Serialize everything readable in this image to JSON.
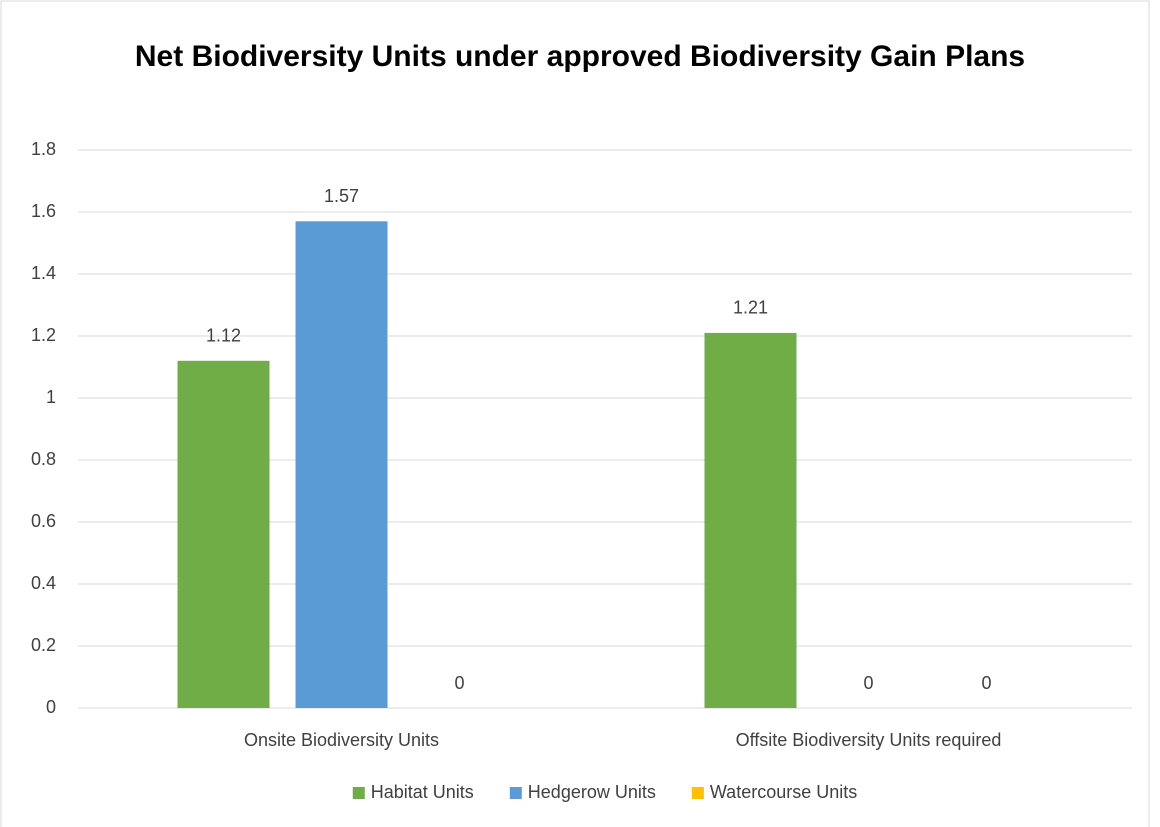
{
  "chart_data": {
    "type": "bar",
    "title": "Net Biodiversity Units under approved Biodiversity Gain Plans",
    "categories": [
      "Onsite Biodiversity Units",
      "Offsite Biodiversity Units required"
    ],
    "series": [
      {
        "name": "Habitat Units",
        "color": "#70ad47",
        "values": [
          1.12,
          1.21
        ]
      },
      {
        "name": "Hedgerow Units",
        "color": "#5b9bd5",
        "values": [
          1.57,
          0
        ]
      },
      {
        "name": "Watercourse Units",
        "color": "#ffc000",
        "values": [
          0,
          0
        ]
      }
    ],
    "ylim": [
      0,
      1.8
    ],
    "yticks": [
      0,
      0.2,
      0.4,
      0.6,
      0.8,
      1,
      1.2,
      1.4,
      1.6,
      1.8
    ],
    "grid": true,
    "legend": "bottom",
    "data_labels": true
  }
}
